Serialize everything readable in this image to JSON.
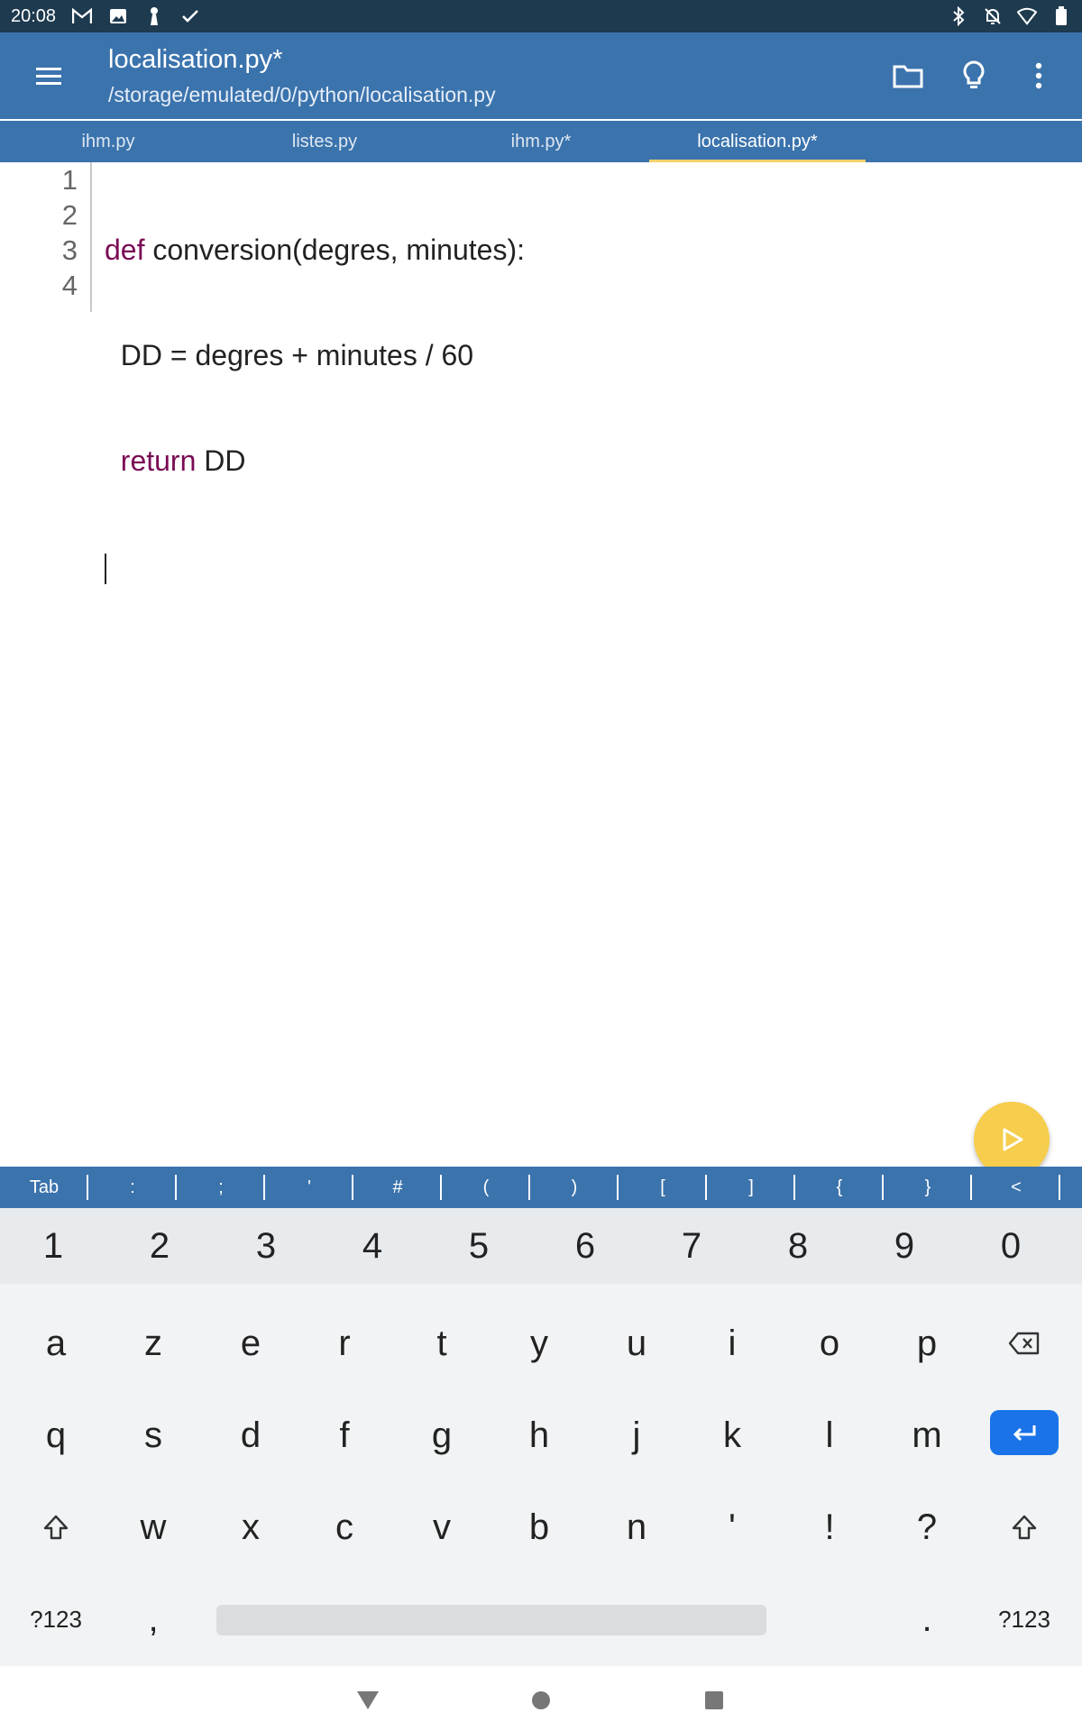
{
  "status_bar": {
    "time": "20:08",
    "left_icons": [
      "gmail-icon",
      "image-icon",
      "chess-piece-icon",
      "check-icon"
    ],
    "right_icons": [
      "bluetooth-icon",
      "notifications-off-icon",
      "wifi-icon",
      "battery-icon"
    ]
  },
  "app_bar": {
    "title": "localisation.py*",
    "subtitle": "/storage/emulated/0/python/localisation.py",
    "actions": [
      "folder-icon",
      "lightbulb-icon",
      "more-vert-icon"
    ]
  },
  "tabs": [
    {
      "label": "ihm.py",
      "active": false
    },
    {
      "label": "listes.py",
      "active": false
    },
    {
      "label": "ihm.py*",
      "active": false
    },
    {
      "label": "localisation.py*",
      "active": true
    }
  ],
  "editor": {
    "line_numbers": [
      "1",
      "2",
      "3",
      "4"
    ],
    "lines": [
      {
        "keyword": "def",
        "rest": " conversion(degres, minutes):"
      },
      {
        "keyword": "",
        "rest": "  DD = degres + minutes / 60"
      },
      {
        "keyword": "  return",
        "rest": " DD"
      },
      {
        "keyword": "",
        "rest": ""
      }
    ]
  },
  "symbol_bar": [
    "Tab",
    ":",
    ";",
    "'",
    "#",
    "(",
    ")",
    "[",
    "]",
    "{",
    "}",
    "<"
  ],
  "keyboard": {
    "numbers": [
      "1",
      "2",
      "3",
      "4",
      "5",
      "6",
      "7",
      "8",
      "9",
      "0"
    ],
    "row1": [
      "a",
      "z",
      "e",
      "r",
      "t",
      "y",
      "u",
      "i",
      "o",
      "p"
    ],
    "row2": [
      "q",
      "s",
      "d",
      "f",
      "g",
      "h",
      "j",
      "k",
      "l",
      "m"
    ],
    "row3": [
      "w",
      "x",
      "c",
      "v",
      "b",
      "n",
      "'",
      "!",
      "?"
    ],
    "symbols_key": "?123",
    "comma": ",",
    "period": "."
  },
  "accent_colors": {
    "app_bar": "#3b73ad",
    "tab_indicator": "#f3d16a",
    "run_button": "#f6cd4c",
    "keyword": "#7a0b55",
    "enter_key": "#1a73e8"
  }
}
